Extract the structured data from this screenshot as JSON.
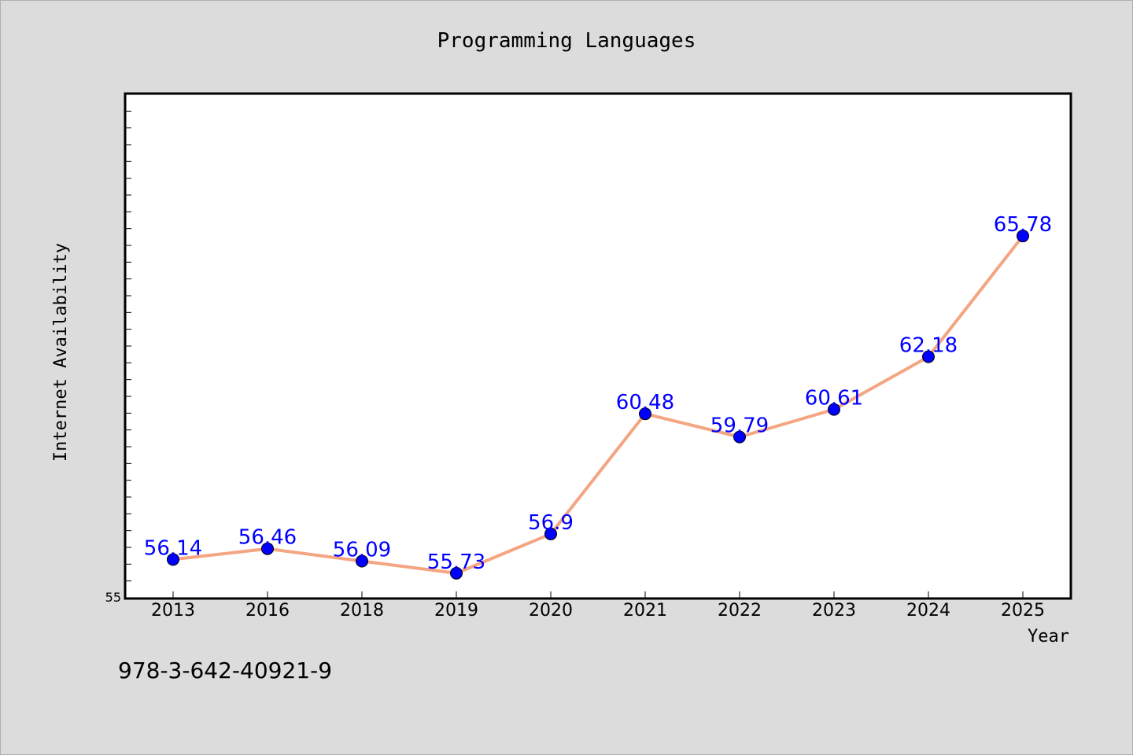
{
  "chart_data": {
    "type": "line",
    "title": "Programming Languages",
    "xlabel": "Year",
    "ylabel": "Internet Availability",
    "categories": [
      "2013",
      "2016",
      "2018",
      "2019",
      "2020",
      "2021",
      "2022",
      "2023",
      "2024",
      "2025"
    ],
    "series": [
      {
        "values": [
          56.14,
          56.46,
          56.09,
          55.73,
          56.9,
          60.48,
          59.79,
          60.61,
          62.18,
          65.78
        ],
        "labels": [
          "56.14",
          "56.46",
          "56.09",
          "55.73",
          "56.9",
          "60.48",
          "59.79",
          "60.61",
          "62.18",
          "65.78"
        ],
        "line_color": "#f4a582",
        "marker_color": "#0000ff"
      }
    ],
    "ylim": [
      55,
      70
    ],
    "yticks_labeled": [
      "55"
    ],
    "grid": false,
    "legend": "none"
  },
  "footer": {
    "isbn": "978-3-642-40921-9"
  }
}
